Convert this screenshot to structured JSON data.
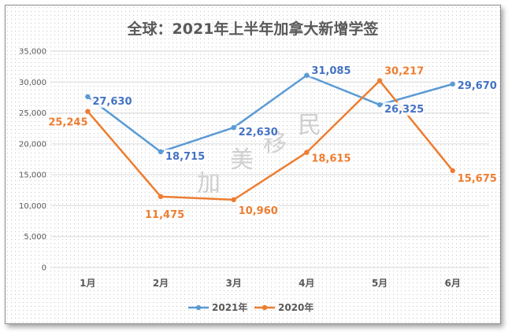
{
  "chart_data": {
    "type": "line",
    "title": "全球：2021年上半年加拿大新增学签",
    "categories": [
      "1月",
      "2月",
      "3月",
      "4月",
      "5月",
      "6月"
    ],
    "ylim": [
      0,
      35000
    ],
    "yticks": [
      0,
      5000,
      10000,
      15000,
      20000,
      25000,
      30000,
      35000
    ],
    "ytick_labels": [
      "0",
      "5,000",
      "10,000",
      "15,000",
      "20,000",
      "25,000",
      "30,000",
      "35,000"
    ],
    "grid": true,
    "legend_position": "bottom",
    "series": [
      {
        "name": "2021年",
        "color": "#5b9bd5",
        "label_color": "#4472c4",
        "values": [
          27630,
          18715,
          22630,
          31085,
          26325,
          29670
        ],
        "labels": [
          "27,630",
          "18,715",
          "22,630",
          "31,085",
          "26,325",
          "29,670"
        ]
      },
      {
        "name": "2020年",
        "color": "#ed7d31",
        "label_color": "#ed7d31",
        "values": [
          25245,
          11475,
          10960,
          18615,
          30217,
          15675
        ],
        "labels": [
          "25,245",
          "11,475",
          "10,960",
          "18,615",
          "30,217",
          "15,675"
        ]
      }
    ],
    "watermark": [
      "加",
      "美",
      "移",
      "民"
    ]
  }
}
